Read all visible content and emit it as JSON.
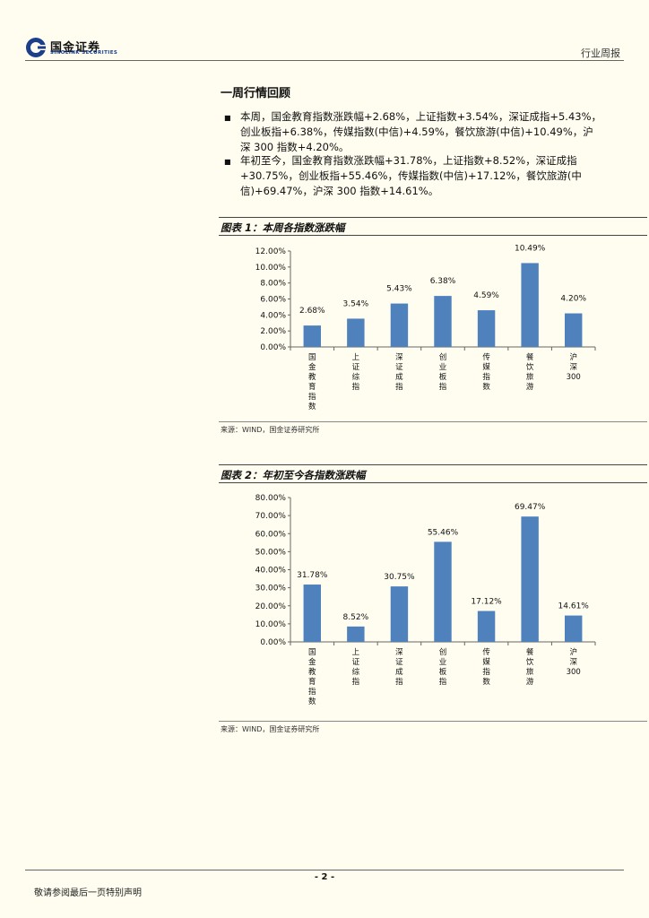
{
  "header": {
    "logo_name": "国金证券",
    "logo_sub": "SINOLINK SECURITIES",
    "report_type": "行业周报"
  },
  "section_title": "一周行情回顾",
  "paragraphs": [
    {
      "lines": [
        "本周，国金教育指数涨跌幅+2.68%，上证指数+3.54%，深证成指+5.43%，",
        "创业板指+6.38%，传媒指数(中信)+4.59%，餐饮旅游(中信)+10.49%，沪",
        "深 300 指数+4.20%。"
      ]
    },
    {
      "lines": [
        "年初至今，国金教育指数涨跌幅+31.78%，上证指数+8.52%，深证成指",
        "+30.75%，创业板指+55.46%，传媒指数(中信)+17.12%，餐饮旅游(中",
        "信)+69.47%，沪深 300 指数+14.61%。"
      ]
    }
  ],
  "chart1": {
    "title": "图表 1：本周各指数涨跌幅",
    "source": "来源：WIND，国金证券研究所"
  },
  "chart2": {
    "title": "图表 2：年初至今各指数涨跌幅",
    "source": "来源：WIND，国金证券研究所"
  },
  "chart_data": [
    {
      "type": "bar",
      "title": "图表 1：本周各指数涨跌幅",
      "categories": [
        "国金教育指数",
        "上证综指",
        "深证成指",
        "创业板指",
        "传媒指数",
        "餐饮旅游",
        "沪深300"
      ],
      "values": [
        2.68,
        3.54,
        5.43,
        6.38,
        4.59,
        10.49,
        4.2
      ],
      "data_labels": [
        "2.68%",
        "3.54%",
        "5.43%",
        "6.38%",
        "4.59%",
        "10.49%",
        "4.20%"
      ],
      "yticks": [
        "0.00%",
        "2.00%",
        "4.00%",
        "6.00%",
        "8.00%",
        "10.00%",
        "12.00%"
      ],
      "ylim": [
        0,
        12
      ],
      "ystep": 2,
      "bar_color": "#4f81bd",
      "grid": false
    },
    {
      "type": "bar",
      "title": "图表 2：年初至今各指数涨跌幅",
      "categories": [
        "国金教育指数",
        "上证综指",
        "深证成指",
        "创业板指",
        "传媒指数",
        "餐饮旅游",
        "沪深300"
      ],
      "values": [
        31.78,
        8.52,
        30.75,
        55.46,
        17.12,
        69.47,
        14.61
      ],
      "data_labels": [
        "31.78%",
        "8.52%",
        "30.75%",
        "55.46%",
        "17.12%",
        "69.47%",
        "14.61%"
      ],
      "yticks": [
        "0.00%",
        "10.00%",
        "20.00%",
        "30.00%",
        "40.00%",
        "50.00%",
        "60.00%",
        "70.00%",
        "80.00%"
      ],
      "ylim": [
        0,
        80
      ],
      "ystep": 10,
      "bar_color": "#4f81bd",
      "grid": false
    }
  ],
  "footer": {
    "page_number": "- 2 -",
    "note": "敬请参阅最后一页特别声明"
  },
  "colors": {
    "accent": "#1b3f8a",
    "bar": "#4f81bd"
  }
}
